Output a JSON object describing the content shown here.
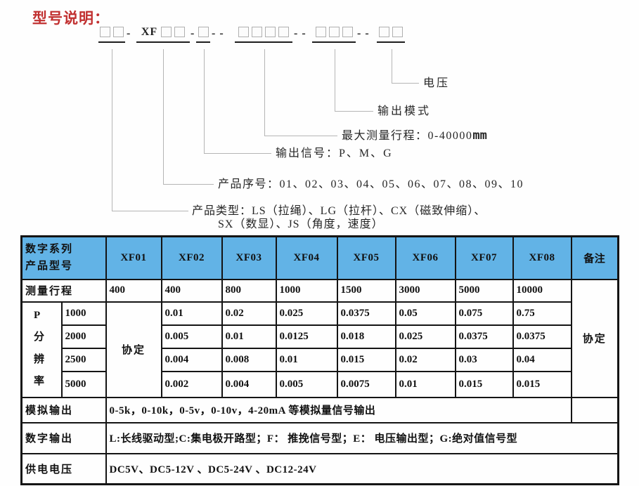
{
  "title": "型号说明：",
  "model_format": {
    "groups": [
      {
        "prefix": "",
        "boxes": 2
      },
      {
        "prefix": "XF",
        "boxes": 2
      },
      {
        "prefix": "",
        "boxes": 1
      },
      {
        "prefix": "",
        "boxes": 4
      },
      {
        "prefix": "",
        "boxes": 3
      },
      {
        "prefix": "",
        "boxes": 2
      }
    ],
    "separators": [
      "-",
      "-",
      "- -",
      "- -",
      "- -"
    ]
  },
  "callouts": [
    {
      "label": "产品类型：LS（拉绳）、LG（拉杆）、CX（磁致伸缩）、",
      "label2": "SX（数显）、JS（角度，速度）"
    },
    {
      "label": "产品序号：01、02、03、04、05、06、07、08、09、10"
    },
    {
      "label": "输出信号：P、M、G"
    },
    {
      "label": "最大测量行程：0-40000",
      "unit": "mm"
    },
    {
      "label": "输出模式"
    },
    {
      "label": "电压"
    }
  ],
  "table": {
    "header": {
      "label_line1": "数字系列",
      "label_line2": "产品型号",
      "models": [
        "XF01",
        "XF02",
        "XF03",
        "XF04",
        "XF05",
        "XF06",
        "XF07",
        "XF08"
      ],
      "remark": "备注"
    },
    "travel": {
      "label": "测量行程",
      "values": [
        "400",
        "400",
        "800",
        "1000",
        "1500",
        "3000",
        "5000",
        "10000"
      ]
    },
    "resolution": {
      "row_label_chars": [
        "P",
        "分",
        "辨",
        "率"
      ],
      "xf01_note": "协定",
      "remark_note": "协定",
      "rows": [
        {
          "points": "1000",
          "values": [
            "0.01",
            "0.02",
            "0.025",
            "0.0375",
            "0.05",
            "0.075",
            "0.75"
          ]
        },
        {
          "points": "2000",
          "values": [
            "0.005",
            "0.01",
            "0.0125",
            "0.018",
            "0.025",
            "0.0375",
            "0.0375"
          ]
        },
        {
          "points": "2500",
          "values": [
            "0.004",
            "0.008",
            "0.01",
            "0.015",
            "0.02",
            "0.03",
            "0.04"
          ]
        },
        {
          "points": "5000",
          "values": [
            "0.002",
            "0.004",
            "0.005",
            "0.0075",
            "0.01",
            "0.015",
            "0.015"
          ]
        }
      ]
    },
    "analog": {
      "label": "模拟输出",
      "value": "0-5k，0-10k，0-5v，0-10v，4-20mA 等模拟量信号输出"
    },
    "digital": {
      "label": "数字输出",
      "value": "L:长线驱动型;C:集电极开路型；F： 推挽信号型；E： 电压输出型；G:绝对值信号型"
    },
    "power": {
      "label": "供电电压",
      "value": "DC5V、DC5-12V 、DC5-24V 、DC12-24V"
    }
  },
  "colors": {
    "header_bg": "#62b3e6",
    "header_text": "#16254e",
    "title_red": "#c13030",
    "border": "#141414",
    "callout_line": "#b5b5b5"
  }
}
